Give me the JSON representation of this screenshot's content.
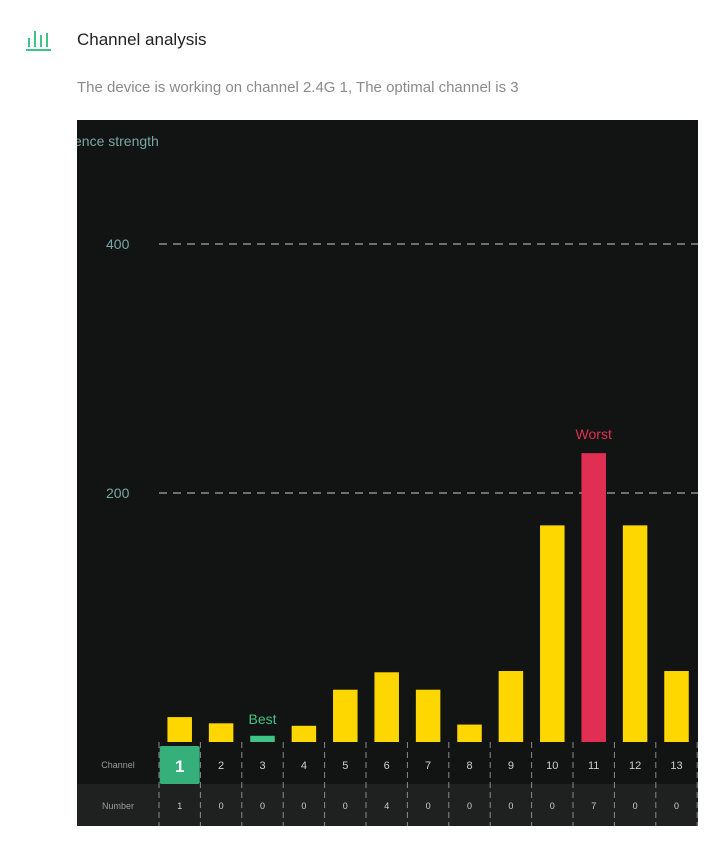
{
  "header": {
    "icon": "signal-bars-icon",
    "title": "Channel analysis",
    "subtitle": "The device is working on channel 2.4G 1, The optimal channel is 3"
  },
  "colors": {
    "accent": "#3fc487",
    "bar": "#ffd700",
    "best": "#3fc487",
    "worst": "#e02f52",
    "chart_bg": "#111412",
    "table_bg": "#1f2120",
    "axis_text": "#7aa6a6"
  },
  "chart_data": {
    "type": "bar",
    "ylabel": "ence strength",
    "y_ticks": [
      200,
      400
    ],
    "ylim": [
      0,
      500
    ],
    "grid": "dashed horizontal lines at tick values",
    "categories": [
      "1",
      "2",
      "3",
      "4",
      "5",
      "6",
      "7",
      "8",
      "9",
      "10",
      "11",
      "12",
      "13"
    ],
    "values": [
      20,
      15,
      5,
      13,
      42,
      56,
      42,
      14,
      57,
      174,
      232,
      174,
      57
    ],
    "current_channel": "1",
    "best_channel": "3",
    "worst_channel": "11",
    "best_label": "Best",
    "worst_label": "Worst",
    "row_labels": {
      "channel": "Channel",
      "number": "Number"
    },
    "numbers": [
      "1",
      "0",
      "0",
      "0",
      "0",
      "4",
      "0",
      "0",
      "0",
      "0",
      "7",
      "0",
      "0"
    ]
  }
}
